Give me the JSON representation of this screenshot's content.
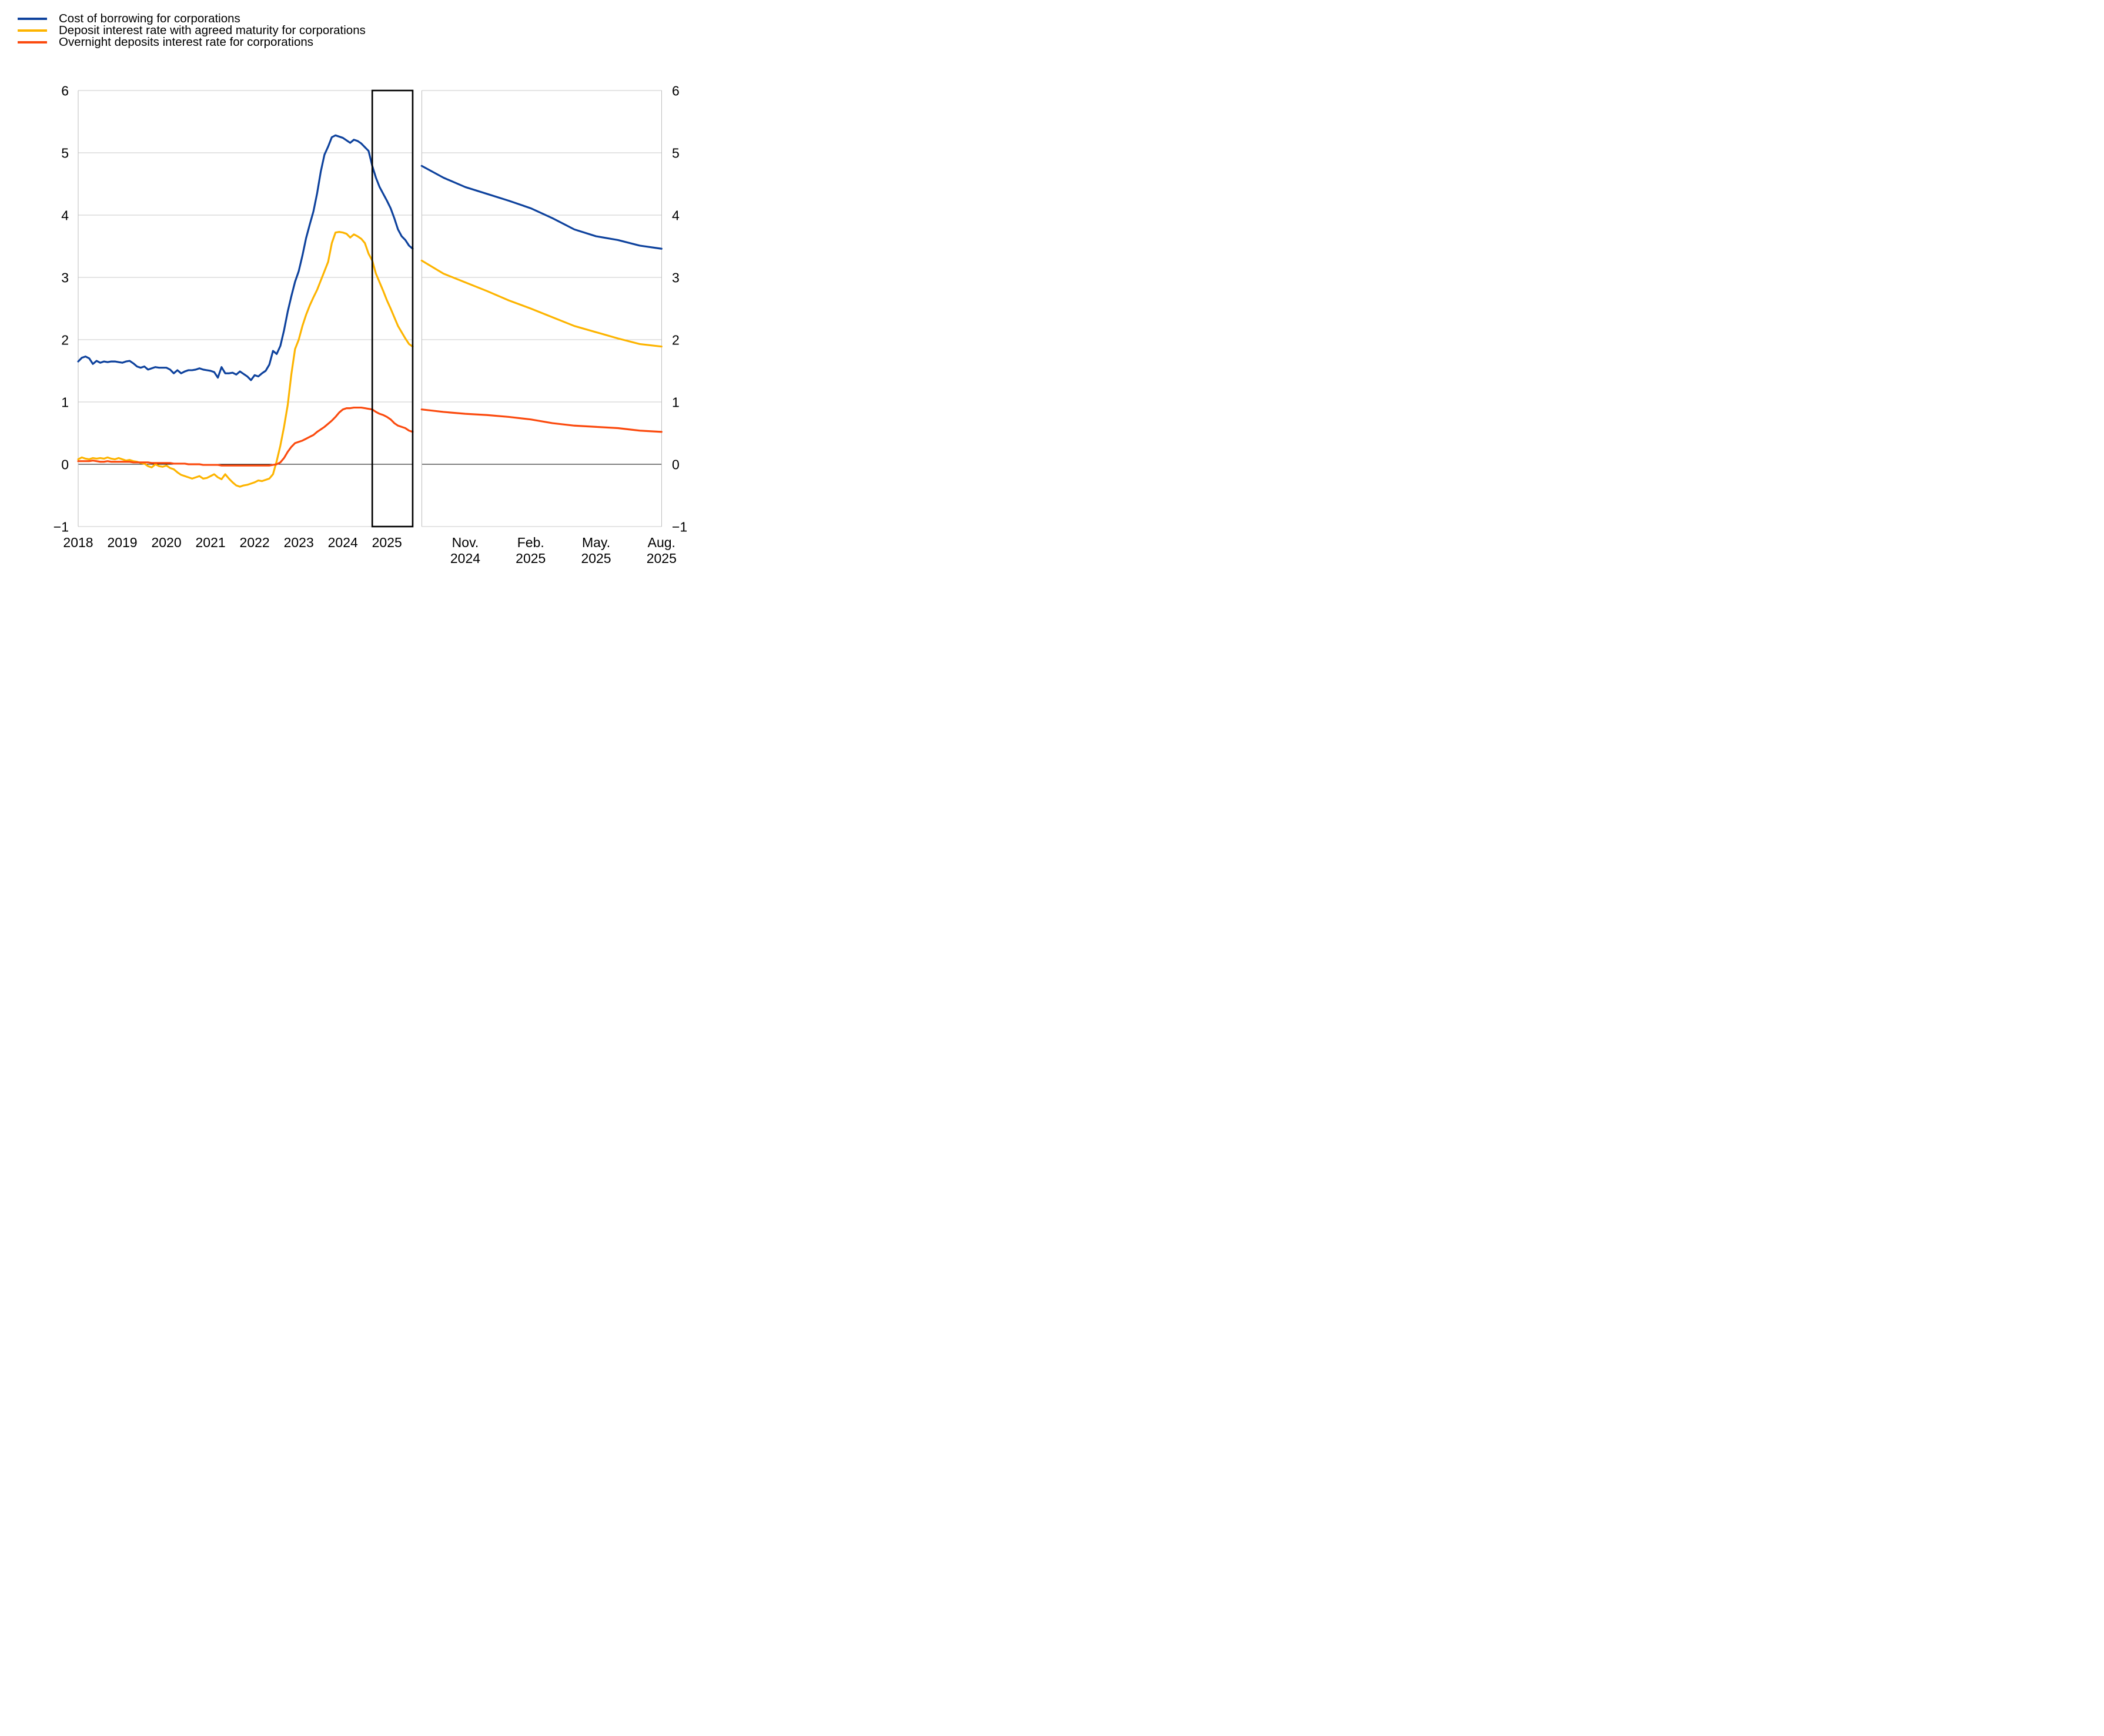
{
  "styles": {
    "background": "#ffffff",
    "gridline": "#c8c8c8",
    "zero_line": "#000000",
    "panel_border": "#bdbdbd",
    "highlight_stroke": "#000000",
    "blue": "#0e429d",
    "yellow": "#fdb400",
    "red": "#fb4a0e"
  },
  "legend": {
    "items": [
      {
        "label": "Cost of borrowing for corporations",
        "color": "#0e429d"
      },
      {
        "label": "Deposit interest rate with agreed maturity for corporations",
        "color": "#fdb400"
      },
      {
        "label": "Overnight deposits interest rate for corporations",
        "color": "#fb4a0e"
      }
    ]
  },
  "axes": {
    "y_left_labels": [
      "6",
      "5",
      "4",
      "3",
      "2",
      "1",
      "0",
      "−1"
    ],
    "y_right_labels": [
      "6",
      "5",
      "4",
      "3",
      "2",
      "1",
      "0",
      "−1"
    ],
    "y_tick_values": [
      6,
      5,
      4,
      3,
      2,
      1,
      0,
      -1
    ]
  },
  "chart_data": [
    {
      "panel": "full-history",
      "type": "line",
      "x_start": "2018-01",
      "x_end": "2025-08",
      "x_tick_labels": [
        "2018",
        "2019",
        "2020",
        "2021",
        "2022",
        "2023",
        "2024",
        "2025"
      ],
      "x_tick_month_indices": [
        0,
        12,
        24,
        36,
        48,
        60,
        72,
        84
      ],
      "ylim": [
        -1,
        6
      ],
      "grid": "horizontal",
      "highlight_window": {
        "from": "2024-09",
        "to": "2025-08"
      },
      "series": [
        {
          "name": "Cost of borrowing for corporations",
          "color": "#0e429d",
          "values": [
            1.65,
            1.71,
            1.73,
            1.7,
            1.61,
            1.66,
            1.63,
            1.65,
            1.64,
            1.65,
            1.65,
            1.64,
            1.63,
            1.65,
            1.66,
            1.62,
            1.57,
            1.55,
            1.57,
            1.52,
            1.54,
            1.56,
            1.55,
            1.55,
            1.55,
            1.52,
            1.46,
            1.51,
            1.46,
            1.49,
            1.51,
            1.51,
            1.52,
            1.54,
            1.52,
            1.51,
            1.5,
            1.48,
            1.39,
            1.56,
            1.46,
            1.46,
            1.47,
            1.44,
            1.49,
            1.45,
            1.41,
            1.35,
            1.43,
            1.41,
            1.46,
            1.5,
            1.6,
            1.82,
            1.77,
            1.9,
            2.15,
            2.45,
            2.7,
            2.93,
            3.1,
            3.35,
            3.63,
            3.85,
            4.06,
            4.35,
            4.7,
            4.97,
            5.1,
            5.25,
            5.28,
            5.26,
            5.24,
            5.2,
            5.16,
            5.21,
            5.19,
            5.15,
            5.09,
            5.03,
            4.79,
            4.6,
            4.45,
            4.34,
            4.23,
            4.11,
            3.95,
            3.77,
            3.66,
            3.6,
            3.51,
            3.46
          ]
        },
        {
          "name": "Deposit interest rate with agreed maturity for corporations",
          "color": "#fdb400",
          "values": [
            0.08,
            0.11,
            0.09,
            0.08,
            0.1,
            0.09,
            0.1,
            0.09,
            0.11,
            0.09,
            0.08,
            0.1,
            0.08,
            0.06,
            0.07,
            0.05,
            0.04,
            0.02,
            0.01,
            -0.03,
            -0.05,
            0.0,
            -0.03,
            -0.04,
            -0.02,
            -0.06,
            -0.08,
            -0.13,
            -0.17,
            -0.19,
            -0.21,
            -0.23,
            -0.21,
            -0.19,
            -0.23,
            -0.22,
            -0.19,
            -0.16,
            -0.21,
            -0.24,
            -0.16,
            -0.23,
            -0.29,
            -0.34,
            -0.36,
            -0.34,
            -0.33,
            -0.31,
            -0.29,
            -0.26,
            -0.27,
            -0.25,
            -0.23,
            -0.16,
            0.05,
            0.3,
            0.6,
            0.95,
            1.45,
            1.85,
            2.0,
            2.22,
            2.4,
            2.55,
            2.68,
            2.8,
            2.95,
            3.1,
            3.25,
            3.55,
            3.72,
            3.73,
            3.72,
            3.7,
            3.64,
            3.69,
            3.66,
            3.62,
            3.55,
            3.38,
            3.27,
            3.06,
            2.92,
            2.78,
            2.63,
            2.5,
            2.36,
            2.22,
            2.12,
            2.02,
            1.93,
            1.89
          ]
        },
        {
          "name": "Overnight deposits interest rate for corporations",
          "color": "#fb4a0e",
          "values": [
            0.05,
            0.05,
            0.05,
            0.05,
            0.06,
            0.05,
            0.04,
            0.04,
            0.05,
            0.04,
            0.04,
            0.04,
            0.04,
            0.04,
            0.04,
            0.03,
            0.03,
            0.03,
            0.03,
            0.03,
            0.02,
            0.02,
            0.02,
            0.02,
            0.02,
            0.02,
            0.01,
            0.01,
            0.01,
            0.01,
            0.0,
            0.0,
            0.0,
            0.0,
            -0.01,
            -0.01,
            -0.01,
            -0.01,
            -0.01,
            -0.02,
            -0.02,
            -0.02,
            -0.02,
            -0.02,
            -0.02,
            -0.02,
            -0.02,
            -0.02,
            -0.02,
            -0.02,
            -0.02,
            -0.02,
            -0.02,
            -0.01,
            0.0,
            0.03,
            0.1,
            0.2,
            0.28,
            0.34,
            0.36,
            0.38,
            0.41,
            0.44,
            0.47,
            0.52,
            0.56,
            0.6,
            0.65,
            0.7,
            0.76,
            0.83,
            0.88,
            0.9,
            0.9,
            0.91,
            0.91,
            0.91,
            0.9,
            0.89,
            0.88,
            0.84,
            0.81,
            0.79,
            0.76,
            0.72,
            0.66,
            0.62,
            0.6,
            0.58,
            0.54,
            0.52
          ]
        }
      ]
    },
    {
      "panel": "zoom-last-12-months",
      "type": "line",
      "months": [
        "Sep 2024",
        "Oct 2024",
        "Nov 2024",
        "Dec 2024",
        "Jan 2025",
        "Feb 2025",
        "Mar 2025",
        "Apr 2025",
        "May 2025",
        "Jun 2025",
        "Jul 2025",
        "Aug 2025"
      ],
      "x_tick_indices": [
        2,
        5,
        8,
        11
      ],
      "x_tick_labels": [
        [
          "Nov.",
          "2024"
        ],
        [
          "Feb.",
          "2025"
        ],
        [
          "May.",
          "2025"
        ],
        [
          "Aug.",
          "2025"
        ]
      ],
      "ylim": [
        -1,
        6
      ],
      "grid": "horizontal",
      "series": [
        {
          "name": "Cost of borrowing for corporations",
          "color": "#0e429d",
          "values": [
            4.79,
            4.6,
            4.45,
            4.34,
            4.23,
            4.11,
            3.95,
            3.77,
            3.66,
            3.6,
            3.51,
            3.46
          ]
        },
        {
          "name": "Deposit interest rate with agreed maturity for corporations",
          "color": "#fdb400",
          "values": [
            3.27,
            3.06,
            2.92,
            2.78,
            2.63,
            2.5,
            2.36,
            2.22,
            2.12,
            2.02,
            1.93,
            1.89
          ]
        },
        {
          "name": "Overnight deposits interest rate for corporations",
          "color": "#fb4a0e",
          "values": [
            0.88,
            0.84,
            0.81,
            0.79,
            0.76,
            0.72,
            0.66,
            0.62,
            0.6,
            0.58,
            0.54,
            0.52
          ]
        }
      ]
    }
  ]
}
